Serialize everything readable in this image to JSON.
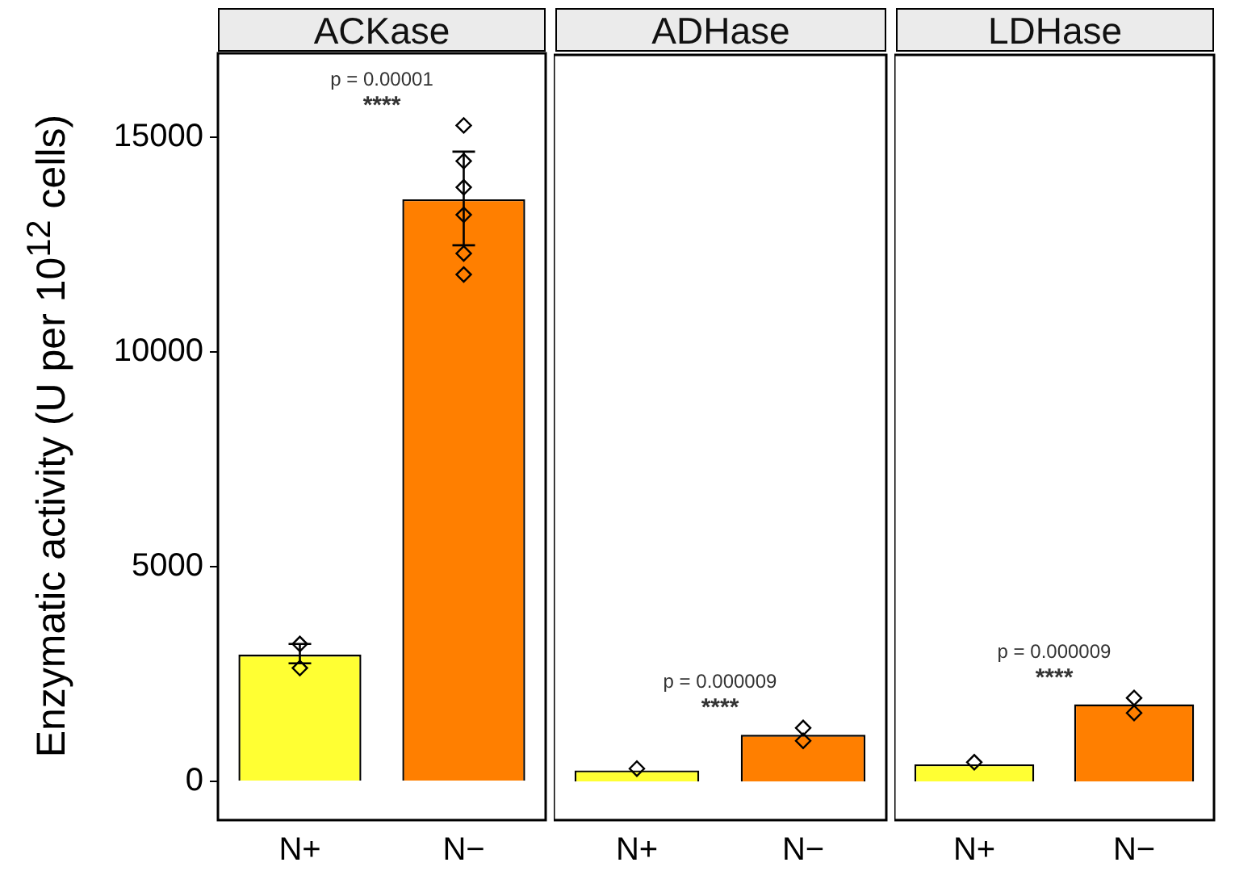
{
  "chart_data": [
    {
      "type": "bar",
      "title": "ACKase",
      "ylabel": "Enzymatic activity (U per 10$^{12}$ cells)",
      "categories": [
        "N+",
        "N−"
      ],
      "ylim": [
        -900,
        16950
      ],
      "yticks": [
        0,
        5000,
        10000,
        15000
      ],
      "marker": "diamond",
      "series": [
        {
          "colors": [
            "#ffff33",
            "#ff7f00"
          ],
          "values": [
            2950,
            13550
          ],
          "errors": [
            [
              2750,
              3200
            ],
            [
              12480,
              14660
            ]
          ]
        },
        {
          "type": "scatter",
          "color": "#000000",
          "x": [
            "N+",
            "N+",
            "N−",
            "N−",
            "N−",
            "N−",
            "N−",
            "N−"
          ],
          "values": [
            3200,
            2640,
            15270,
            14440,
            13830,
            13190,
            12290,
            11800
          ]
        }
      ],
      "annotations": [
        "p = 0.00001",
        "****"
      ]
    },
    {
      "type": "bar",
      "title": "ADHase",
      "categories": [
        "N+",
        "N−"
      ],
      "ylim": [
        -900,
        16950
      ],
      "tick_labels": "x",
      "marker": "diamond",
      "series": [
        {
          "colors": [
            "#ffff33",
            "#ff7f00"
          ],
          "values": [
            260,
            1090
          ]
        },
        {
          "type": "scatter",
          "color": "#000000",
          "x": [
            "N+",
            "N−",
            "N−"
          ],
          "values": [
            300,
            950,
            1250
          ]
        }
      ],
      "annotations": [
        "p = 0.000009",
        "****"
      ]
    },
    {
      "type": "bar",
      "title": "LDHase",
      "categories": [
        "N+",
        "N−"
      ],
      "ylim": [
        -900,
        16950
      ],
      "tick_labels": "x",
      "marker": "diamond",
      "series": [
        {
          "colors": [
            "#ffff33",
            "#ff7f00"
          ],
          "values": [
            400,
            1800
          ]
        },
        {
          "type": "scatter",
          "color": "#000000",
          "x": [
            "N+",
            "N−",
            "N−"
          ],
          "values": [
            450,
            1600,
            1950
          ]
        }
      ],
      "annotations": [
        "p = 0.000009",
        "****"
      ]
    }
  ]
}
